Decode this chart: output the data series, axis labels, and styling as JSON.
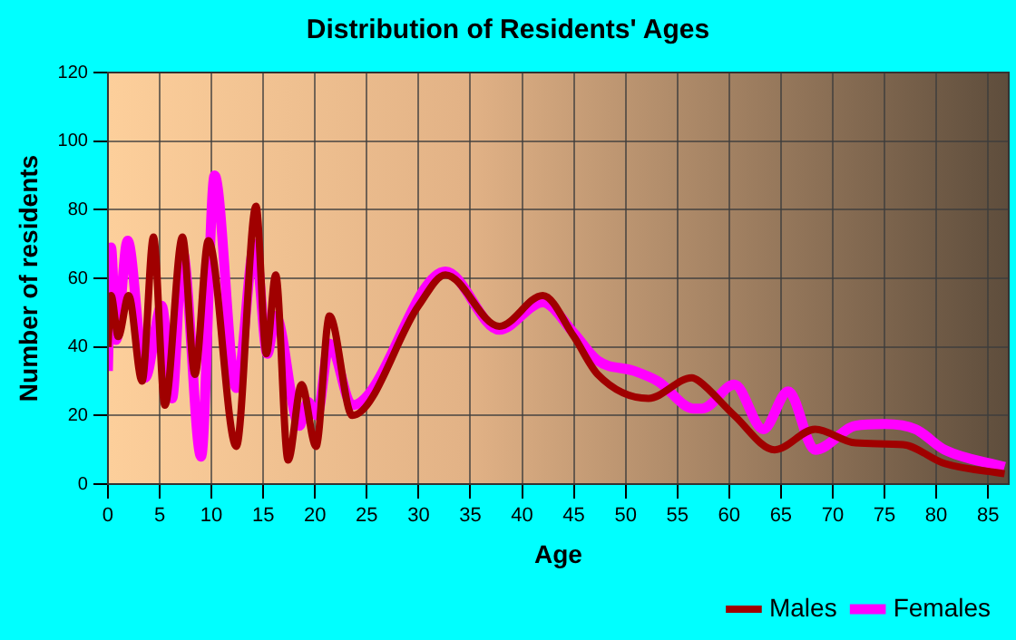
{
  "chart_data": {
    "type": "line",
    "title": "Distribution of Residents' Ages",
    "xlabel": "Age",
    "ylabel": "Number of residents",
    "xlim": [
      0,
      87
    ],
    "xticks": [
      0,
      5,
      10,
      15,
      20,
      25,
      30,
      35,
      40,
      45,
      50,
      55,
      60,
      65,
      70,
      75,
      80,
      85
    ],
    "ylim": [
      0,
      120
    ],
    "yticks": [
      0,
      20,
      40,
      60,
      80,
      100,
      120
    ],
    "grid": true,
    "legend": "bottom right",
    "marker": "none",
    "line_style": "solid",
    "series": [
      {
        "name": "Males",
        "color": "#a00000",
        "x": [
          0,
          0.3,
          1,
          2,
          3.3,
          4.4,
          5.5,
          7.2,
          8.4,
          9.7,
          12.4,
          14.3,
          15.3,
          16.2,
          17.4,
          18.7,
          20.1,
          21.4,
          23.6,
          30,
          32.6,
          37.8,
          42,
          45,
          47.3,
          52.2,
          56.4,
          57.1,
          60.5,
          64.4,
          68.3,
          72.2,
          76.8,
          80.8,
          86.6
        ],
        "values": [
          40,
          55,
          43,
          55,
          30,
          72,
          23,
          72,
          32,
          71,
          11,
          81,
          38,
          61,
          7,
          29,
          11,
          49,
          20,
          52,
          61,
          46,
          55,
          43,
          32,
          25,
          31,
          30,
          20,
          10,
          16,
          12,
          11.5,
          6,
          3
        ]
      },
      {
        "name": "Females",
        "color": "#ff00ff",
        "x": [
          0,
          0.3,
          0.8,
          1.9,
          3.6,
          5.2,
          6.2,
          7.2,
          9,
          10.3,
          12.4,
          14.2,
          15.4,
          16.2,
          18.5,
          19.3,
          20.2,
          21.4,
          23.6,
          32.6,
          37.8,
          42,
          45,
          47.3,
          50.8,
          53.1,
          56.6,
          57.4,
          60.5,
          63.3,
          65.7,
          68.3,
          72.2,
          75,
          78,
          80.8,
          86.6
        ],
        "values": [
          33,
          69,
          42,
          71,
          31,
          52,
          25,
          68,
          8,
          90,
          28,
          70,
          38,
          49,
          17,
          24,
          20,
          41,
          23,
          62,
          45,
          53,
          44,
          36,
          33,
          30,
          22,
          22,
          29,
          16,
          27,
          10,
          17,
          17.5,
          16,
          10,
          5
        ]
      }
    ]
  }
}
